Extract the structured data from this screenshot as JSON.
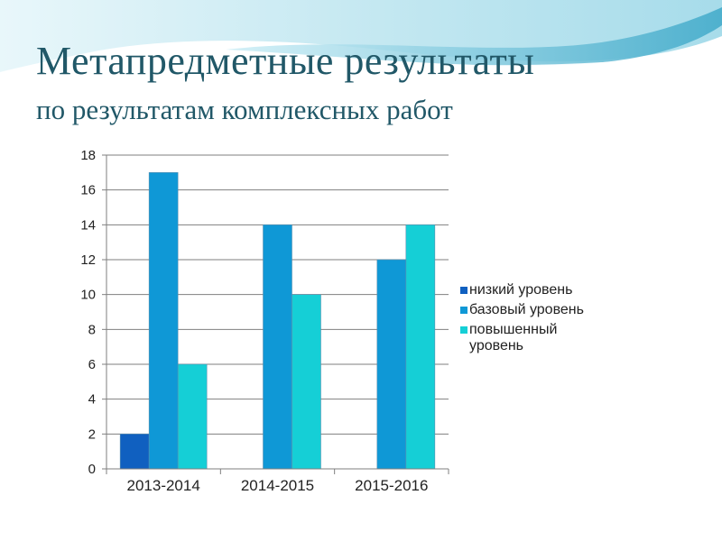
{
  "slide": {
    "title_line1": "Метапредметные результаты",
    "title_line2": "по результатам комплексных работ"
  },
  "colors": {
    "title": "#215868",
    "wave_dark": "#3fa9c9",
    "wave_light": "#bfe6f0"
  },
  "chart_data": {
    "type": "bar",
    "categories": [
      "2013-2014",
      "2014-2015",
      "2015-2016"
    ],
    "series": [
      {
        "name": "низкий уровень",
        "values": [
          2,
          0,
          0
        ],
        "color": "#1060c0"
      },
      {
        "name": "базовый уровень",
        "values": [
          17,
          14,
          12
        ],
        "color": "#0f98d6"
      },
      {
        "name": "повышенный уровень",
        "legend_lines": [
          "повышенный",
          "уровень"
        ],
        "values": [
          6,
          10,
          14
        ],
        "color": "#15cfd6"
      }
    ],
    "ylim": [
      0,
      18
    ],
    "yticks": [
      0,
      2,
      4,
      6,
      8,
      10,
      12,
      14,
      16,
      18
    ],
    "grid": true,
    "legend_position": "right",
    "title": "",
    "xlabel": "",
    "ylabel": ""
  }
}
